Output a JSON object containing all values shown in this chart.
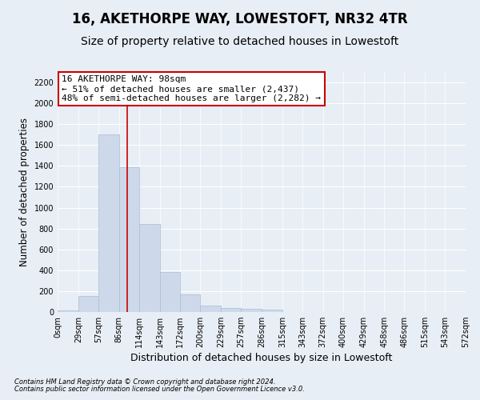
{
  "title": "16, AKETHORPE WAY, LOWESTOFT, NR32 4TR",
  "subtitle": "Size of property relative to detached houses in Lowestoft",
  "xlabel": "Distribution of detached houses by size in Lowestoft",
  "ylabel": "Number of detached properties",
  "bar_edges": [
    0,
    29,
    57,
    86,
    114,
    143,
    172,
    200,
    229,
    257,
    286,
    315,
    343,
    372,
    400,
    429,
    458,
    486,
    515,
    543,
    572
  ],
  "bar_heights": [
    15,
    155,
    1700,
    1390,
    840,
    385,
    165,
    65,
    35,
    28,
    25,
    0,
    0,
    0,
    0,
    0,
    0,
    0,
    0,
    0
  ],
  "bar_color": "#cdd9ea",
  "bar_edge_color": "#a8bdd4",
  "vline_x": 98,
  "vline_color": "#cc0000",
  "ylim": [
    0,
    2300
  ],
  "yticks": [
    0,
    200,
    400,
    600,
    800,
    1000,
    1200,
    1400,
    1600,
    1800,
    2000,
    2200
  ],
  "annotation_title": "16 AKETHORPE WAY: 98sqm",
  "annotation_line1": "← 51% of detached houses are smaller (2,437)",
  "annotation_line2": "48% of semi-detached houses are larger (2,282) →",
  "annotation_box_color": "#cc0000",
  "background_color": "#e8eef5",
  "plot_bg_color": "#e8eef5",
  "grid_color": "#ffffff",
  "footer_line1": "Contains HM Land Registry data © Crown copyright and database right 2024.",
  "footer_line2": "Contains public sector information licensed under the Open Government Licence v3.0.",
  "title_fontsize": 12,
  "subtitle_fontsize": 10,
  "tick_label_fontsize": 7,
  "xlabel_fontsize": 9,
  "ylabel_fontsize": 8.5,
  "annotation_fontsize": 8,
  "footer_fontsize": 6
}
